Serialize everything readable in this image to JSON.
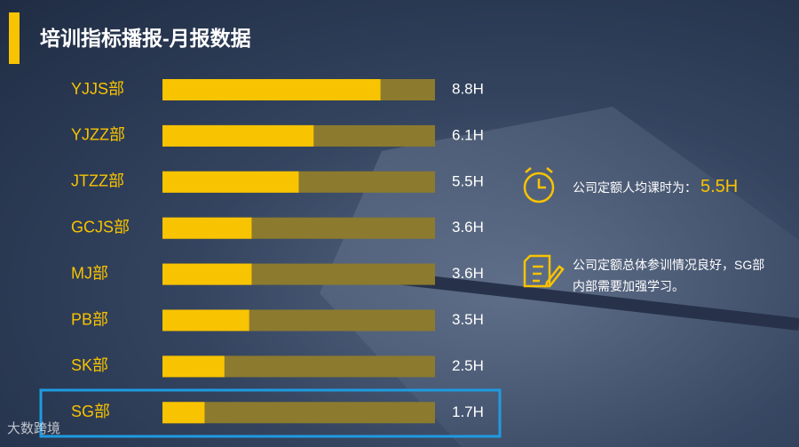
{
  "chart_data": {
    "type": "bar",
    "orientation": "horizontal",
    "title": "培训指标播报-月报数据",
    "categories": [
      "YJJS部",
      "YJZZ部",
      "JTZZ部",
      "GCJS部",
      "MJ部",
      "PB部",
      "SK部",
      "SG部"
    ],
    "values": [
      8.8,
      6.1,
      5.5,
      3.6,
      3.6,
      3.5,
      2.5,
      1.7
    ],
    "value_labels": [
      "8.8H",
      "6.1H",
      "5.5H",
      "3.6H",
      "3.6H",
      "3.5H",
      "2.5H",
      "1.7H"
    ],
    "xlim": [
      0,
      11
    ],
    "color": "#f8c300",
    "track_color": "#8c7a2e",
    "annotations": [
      {
        "text": "公司定额人均课时为：",
        "value": 5.5,
        "value_label": "5.5H"
      },
      {
        "text": "公司定额总体参训情况良好，SG部内部需要加强学习。"
      }
    ]
  },
  "watermark": "大数跨境"
}
